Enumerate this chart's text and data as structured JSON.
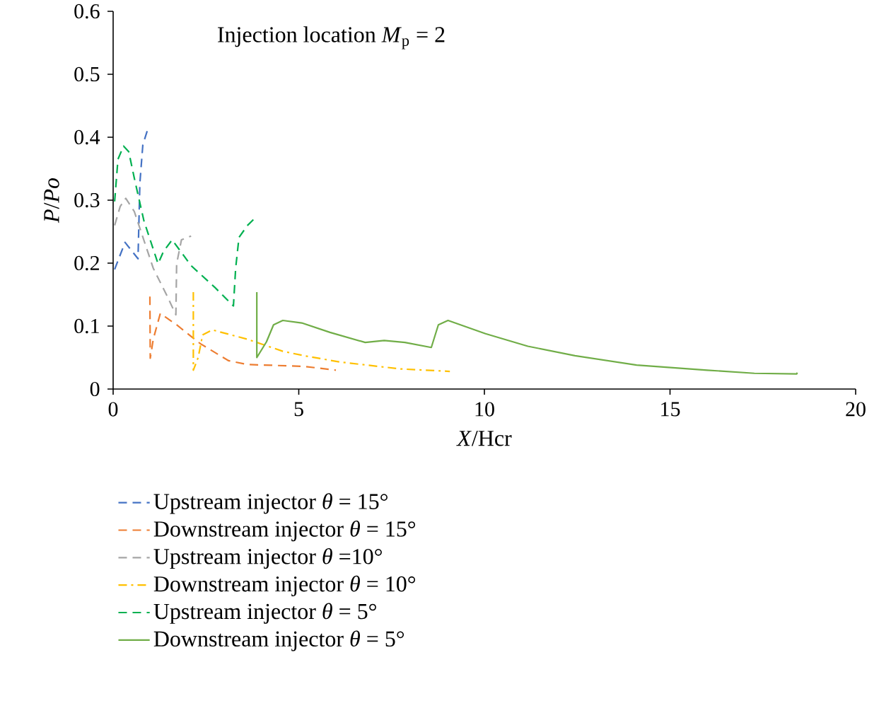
{
  "chart_data": {
    "type": "line",
    "xlabel": "*X*/Hcr",
    "ylabel": "*P*/*Po*",
    "annotations": [
      "Injection location *M*$_{p}$ = 2"
    ],
    "xlim": [
      0,
      20
    ],
    "xticks": [
      0,
      5,
      10,
      15,
      20
    ],
    "ylim": [
      0,
      0.6
    ],
    "yticks": [
      0,
      0.1,
      0.2,
      0.3,
      0.4,
      0.5,
      0.6
    ],
    "legend": "bottom",
    "marker": "none",
    "series": [
      {
        "name": "Upstream injector *θ* = 15°",
        "color": "#4472c4",
        "line_style": "dashed",
        "x": [
          0.04,
          0.32,
          0.67,
          0.72,
          0.8,
          0.95
        ],
        "values": [
          0.19,
          0.233,
          0.207,
          0.327,
          0.388,
          0.416
        ]
      },
      {
        "name": "Downstream injector *θ* = 15°",
        "color": "#ed7d31",
        "line_style": "dashed",
        "x": [
          0.99,
          1.0,
          1.08,
          1.27,
          1.71,
          2.35,
          3.11,
          3.62,
          5.14,
          6.0
        ],
        "values": [
          0.147,
          0.049,
          0.079,
          0.12,
          0.102,
          0.072,
          0.045,
          0.039,
          0.036,
          0.03
        ]
      },
      {
        "name": "Upstream injector *θ* =10°",
        "color": "#a5a5a5",
        "line_style": "dashed",
        "x": [
          0.04,
          0.19,
          0.34,
          0.57,
          1.08,
          1.46,
          1.69,
          1.71,
          1.84,
          2.1
        ],
        "values": [
          0.26,
          0.29,
          0.303,
          0.282,
          0.192,
          0.147,
          0.118,
          0.199,
          0.237,
          0.243
        ]
      },
      {
        "name": "Downstream injector *θ* = 10°",
        "color": "#ffc000",
        "line_style": "dashdot",
        "x": [
          2.16,
          2.16,
          2.29,
          2.41,
          2.67,
          3.62,
          4.57,
          5.14,
          6.1,
          7.73,
          9.07
        ],
        "values": [
          0.154,
          0.03,
          0.05,
          0.086,
          0.094,
          0.079,
          0.06,
          0.053,
          0.043,
          0.032,
          0.028
        ]
      },
      {
        "name": "Upstream injector *θ* = 5°",
        "color": "#00b050",
        "line_style": "dashed",
        "x": [
          0.04,
          0.13,
          0.28,
          0.42,
          0.57,
          0.83,
          1.21,
          1.36,
          1.59,
          2.1,
          2.73,
          3.24,
          3.3,
          3.39,
          3.62,
          3.81
        ],
        "values": [
          0.298,
          0.365,
          0.386,
          0.377,
          0.335,
          0.267,
          0.199,
          0.219,
          0.237,
          0.196,
          0.162,
          0.132,
          0.192,
          0.241,
          0.26,
          0.271
        ]
      },
      {
        "name": "Downstream injector *θ* = 5°",
        "color": "#70ad47",
        "line_style": "solid",
        "x": [
          3.87,
          3.87,
          4.13,
          4.32,
          4.57,
          5.08,
          5.84,
          6.79,
          7.3,
          7.86,
          8.57,
          8.76,
          9.02,
          10.03,
          11.17,
          12.44,
          14.1,
          16.0,
          17.27,
          18.41,
          18.43
        ],
        "values": [
          0.154,
          0.05,
          0.075,
          0.102,
          0.109,
          0.105,
          0.09,
          0.074,
          0.077,
          0.074,
          0.066,
          0.102,
          0.109,
          0.088,
          0.068,
          0.053,
          0.038,
          0.03,
          0.025,
          0.024,
          0.026
        ]
      }
    ]
  }
}
